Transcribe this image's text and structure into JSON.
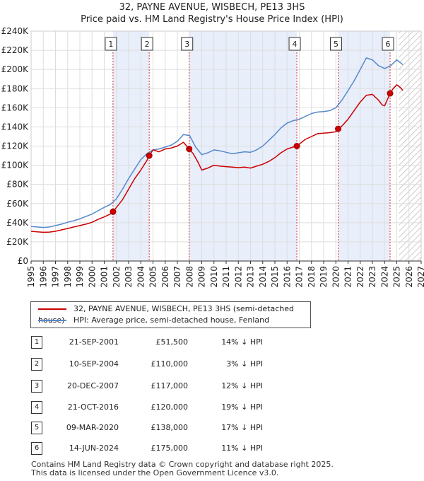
{
  "title": "32, PAYNE AVENUE, WISBECH, PE13 3HS",
  "subtitle": "Price paid vs. HM Land Registry's House Price Index (HPI)",
  "colors": {
    "price_line": "#cc0000",
    "hpi_line": "#5588cc",
    "shade": "#e8eefa",
    "marker_line": "#dd3333",
    "grid": "#dddddd"
  },
  "legend": {
    "price_label": "32, PAYNE AVENUE, WISBECH, PE13 3HS (semi-detached house)",
    "hpi_label": "HPI: Average price, semi-detached house, Fenland"
  },
  "transactions": [
    {
      "num": "1",
      "date": "21-SEP-2001",
      "price": "£51,500",
      "hpi": "14% ↓ HPI"
    },
    {
      "num": "2",
      "date": "10-SEP-2004",
      "price": "£110,000",
      "hpi": "3% ↓ HPI"
    },
    {
      "num": "3",
      "date": "20-DEC-2007",
      "price": "£117,000",
      "hpi": "12% ↓ HPI"
    },
    {
      "num": "4",
      "date": "21-OCT-2016",
      "price": "£120,000",
      "hpi": "19% ↓ HPI"
    },
    {
      "num": "5",
      "date": "09-MAR-2020",
      "price": "£138,000",
      "hpi": "17% ↓ HPI"
    },
    {
      "num": "6",
      "date": "14-JUN-2024",
      "price": "£175,000",
      "hpi": "11% ↓ HPI"
    }
  ],
  "footer": {
    "line1": "Contains HM Land Registry data © Crown copyright and database right 2025.",
    "line2": "This data is licensed under the Open Government Licence v3.0."
  },
  "chart_data": {
    "type": "line",
    "title": "32, PAYNE AVENUE, WISBECH, PE13 3HS",
    "subtitle": "Price paid vs. HM Land Registry's House Price Index (HPI)",
    "xlabel": "",
    "ylabel": "",
    "xlim": [
      1995,
      2027
    ],
    "ylim": [
      0,
      240000
    ],
    "x_ticks": [
      1995,
      1996,
      1997,
      1998,
      1999,
      2000,
      2001,
      2002,
      2003,
      2004,
      2005,
      2006,
      2007,
      2008,
      2009,
      2010,
      2011,
      2012,
      2013,
      2014,
      2015,
      2016,
      2017,
      2018,
      2019,
      2020,
      2021,
      2022,
      2023,
      2024,
      2025,
      2026,
      2027
    ],
    "y_ticks": [
      0,
      20000,
      40000,
      60000,
      80000,
      100000,
      120000,
      140000,
      160000,
      180000,
      200000,
      220000,
      240000
    ],
    "y_tick_labels": [
      "£0",
      "£20K",
      "£40K",
      "£60K",
      "£80K",
      "£100K",
      "£120K",
      "£140K",
      "£160K",
      "£180K",
      "£200K",
      "£220K",
      "£240K"
    ],
    "grid": true,
    "forecast_from": 2025.17,
    "shaded_ranges": [
      [
        2001.72,
        2004.69
      ],
      [
        2007.97,
        2016.8
      ],
      [
        2020.19,
        2024.45
      ]
    ],
    "series": [
      {
        "name": "32, PAYNE AVENUE, WISBECH, PE13 3HS (semi-detached house)",
        "color": "#cc0000",
        "x": [
          1995,
          1995.5,
          1996,
          1996.5,
          1997,
          1997.5,
          1998,
          1998.5,
          1999,
          1999.5,
          2000,
          2000.5,
          2001,
          2001.5,
          2001.72,
          2002,
          2002.5,
          2003,
          2003.5,
          2004,
          2004.5,
          2004.69,
          2005,
          2005.5,
          2006,
          2006.5,
          2007,
          2007.5,
          2007.97,
          2008.3,
          2008.7,
          2009,
          2009.5,
          2010,
          2010.5,
          2011,
          2011.5,
          2012,
          2012.5,
          2013,
          2013.5,
          2014,
          2014.5,
          2015,
          2015.5,
          2016,
          2016.5,
          2016.8,
          2017,
          2017.5,
          2018,
          2018.5,
          2019,
          2019.5,
          2020,
          2020.19,
          2020.5,
          2021,
          2021.5,
          2022,
          2022.5,
          2023,
          2023.5,
          2023.8,
          2024,
          2024.45,
          2024.7,
          2025,
          2025.3,
          2025.5
        ],
        "y": [
          31000,
          30500,
          30000,
          30200,
          31000,
          32500,
          34000,
          35500,
          37000,
          38500,
          40500,
          43500,
          46000,
          49000,
          51500,
          56000,
          64000,
          75000,
          86000,
          95000,
          105000,
          110000,
          116000,
          114000,
          117000,
          118000,
          120000,
          124000,
          117000,
          112000,
          103000,
          95000,
          97000,
          100000,
          99000,
          98500,
          98000,
          97500,
          98000,
          97000,
          99000,
          101000,
          104000,
          108000,
          113000,
          117000,
          119000,
          120000,
          122000,
          127000,
          130000,
          133000,
          133500,
          134000,
          135000,
          138000,
          141000,
          148000,
          157000,
          166000,
          173000,
          174000,
          168000,
          163000,
          162000,
          175000,
          180000,
          184000,
          181000,
          178000
        ]
      },
      {
        "name": "HPI: Average price, semi-detached house, Fenland",
        "color": "#5588cc",
        "x": [
          1995,
          1995.5,
          1996,
          1996.5,
          1997,
          1997.5,
          1998,
          1998.5,
          1999,
          1999.5,
          2000,
          2000.5,
          2001,
          2001.5,
          2002,
          2002.5,
          2003,
          2003.5,
          2004,
          2004.5,
          2005,
          2005.5,
          2006,
          2006.5,
          2007,
          2007.5,
          2008,
          2008.5,
          2009,
          2009.5,
          2010,
          2010.5,
          2011,
          2011.5,
          2012,
          2012.5,
          2013,
          2013.5,
          2014,
          2014.5,
          2015,
          2015.5,
          2016,
          2016.5,
          2017,
          2017.5,
          2018,
          2018.5,
          2019,
          2019.5,
          2020,
          2020.5,
          2021,
          2021.5,
          2022,
          2022.5,
          2023,
          2023.5,
          2024,
          2024.5,
          2025,
          2025.3,
          2025.5
        ],
        "y": [
          36000,
          35500,
          35000,
          35500,
          37000,
          38500,
          40500,
          42000,
          44000,
          46500,
          49000,
          52500,
          56000,
          59000,
          65000,
          75000,
          86000,
          96000,
          106000,
          112000,
          116000,
          117000,
          119000,
          121000,
          125000,
          132000,
          131000,
          119000,
          111000,
          113000,
          116000,
          115000,
          113500,
          112000,
          113000,
          114000,
          113500,
          116000,
          120000,
          126000,
          132000,
          139000,
          144000,
          146500,
          148000,
          151000,
          154000,
          155500,
          156000,
          157000,
          160000,
          168000,
          178000,
          188000,
          200000,
          212000,
          210000,
          204000,
          201000,
          204000,
          210000,
          207000,
          205000
        ]
      }
    ],
    "transaction_points": [
      {
        "label": "1",
        "x": 2001.72,
        "y": 51500
      },
      {
        "label": "2",
        "x": 2004.69,
        "y": 110000
      },
      {
        "label": "3",
        "x": 2007.97,
        "y": 117000
      },
      {
        "label": "4",
        "x": 2016.8,
        "y": 120000
      },
      {
        "label": "5",
        "x": 2020.19,
        "y": 138000
      },
      {
        "label": "6",
        "x": 2024.45,
        "y": 175000
      }
    ]
  }
}
